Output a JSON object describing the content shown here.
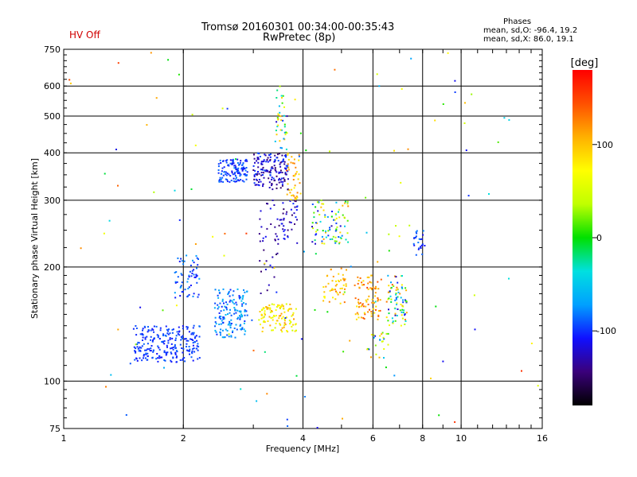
{
  "header": {
    "status": "HV Off",
    "status_color": "#d00000",
    "title_line1": "Tromsø 20160301 00:34:00-00:35:43",
    "title_line2": "RwPretec (8p)"
  },
  "phase_info": {
    "heading": "Phases",
    "line_o": "mean, sd,O: -96.4, 19.2",
    "line_x": "mean, sd,X:  86.0, 19.1"
  },
  "chart_data": {
    "type": "scatter",
    "title": "Tromsø 20160301 00:34:00-00:35:43",
    "subtitle": "RwPretec (8p)",
    "xlabel": "Frequency [MHz]",
    "ylabel": "Stationary phase Virtual Height [km]",
    "x_scale": "log",
    "y_scale": "log",
    "xlim": [
      1,
      16
    ],
    "ylim": [
      75,
      750
    ],
    "x_ticks": [
      1,
      2,
      4,
      6,
      8,
      10,
      16
    ],
    "x_tick_labels": [
      "1",
      "2",
      "4",
      "6",
      "8",
      "10",
      "16"
    ],
    "y_ticks": [
      75,
      100,
      200,
      300,
      400,
      500,
      600,
      750
    ],
    "y_tick_labels": [
      "75",
      "100",
      "200",
      "300",
      "400",
      "500",
      "600",
      "750"
    ],
    "grid": true,
    "colorbar": {
      "label": "[deg]",
      "range": [
        -180,
        180
      ],
      "ticks": [
        100,
        0,
        -100
      ],
      "tick_labels": [
        "100",
        "0",
        "-100"
      ],
      "stops": [
        "#000000",
        "#3a007a",
        "#1010ff",
        "#00a0ff",
        "#00e0e0",
        "#00e000",
        "#c0ff00",
        "#ffff00",
        "#ffb000",
        "#ff5000",
        "#ff0000"
      ]
    },
    "clusters": [
      {
        "f": [
          1.5,
          2.2
        ],
        "h": [
          112,
          140
        ],
        "phase": [
          -110,
          -85
        ],
        "n": 240
      },
      {
        "f": [
          2.4,
          2.9
        ],
        "h": [
          130,
          175
        ],
        "phase": [
          -105,
          -55
        ],
        "n": 150
      },
      {
        "f": [
          1.9,
          2.2
        ],
        "h": [
          165,
          215
        ],
        "phase": [
          -110,
          -70
        ],
        "n": 60
      },
      {
        "f": [
          2.45,
          2.9
        ],
        "h": [
          335,
          385
        ],
        "phase": [
          -115,
          -80
        ],
        "n": 120
      },
      {
        "f": [
          3.0,
          3.7
        ],
        "h": [
          320,
          400
        ],
        "phase": [
          -150,
          -90
        ],
        "n": 160
      },
      {
        "f": [
          3.4,
          3.65
        ],
        "h": [
          400,
          600
        ],
        "phase": [
          -130,
          120
        ],
        "n": 40
      },
      {
        "f": [
          3.1,
          3.5
        ],
        "h": [
          170,
          300
        ],
        "phase": [
          -150,
          -100
        ],
        "n": 40
      },
      {
        "f": [
          3.5,
          3.9
        ],
        "h": [
          230,
          300
        ],
        "phase": [
          -150,
          -100
        ],
        "n": 40
      },
      {
        "f": [
          3.1,
          3.85
        ],
        "h": [
          135,
          160
        ],
        "phase": [
          40,
          120
        ],
        "n": 110
      },
      {
        "f": [
          3.65,
          3.95
        ],
        "h": [
          300,
          400
        ],
        "phase": [
          80,
          130
        ],
        "n": 40
      },
      {
        "f": [
          4.2,
          5.2
        ],
        "h": [
          230,
          300
        ],
        "phase": [
          -130,
          120
        ],
        "n": 90
      },
      {
        "f": [
          4.5,
          5.2
        ],
        "h": [
          160,
          200
        ],
        "phase": [
          70,
          140
        ],
        "n": 50
      },
      {
        "f": [
          5.4,
          6.3
        ],
        "h": [
          145,
          190
        ],
        "phase": [
          80,
          150
        ],
        "n": 80
      },
      {
        "f": [
          6.5,
          7.3
        ],
        "h": [
          140,
          190
        ],
        "phase": [
          -130,
          140
        ],
        "n": 80
      },
      {
        "f": [
          7.6,
          8.1
        ],
        "h": [
          215,
          250
        ],
        "phase": [
          -120,
          -80
        ],
        "n": 25
      },
      {
        "f": [
          5.8,
          6.6
        ],
        "h": [
          115,
          135
        ],
        "phase": [
          -130,
          120
        ],
        "n": 25
      },
      {
        "f": [
          1.0,
          16.0
        ],
        "h": [
          75,
          750
        ],
        "phase": [
          -120,
          160
        ],
        "n": 120
      }
    ]
  }
}
